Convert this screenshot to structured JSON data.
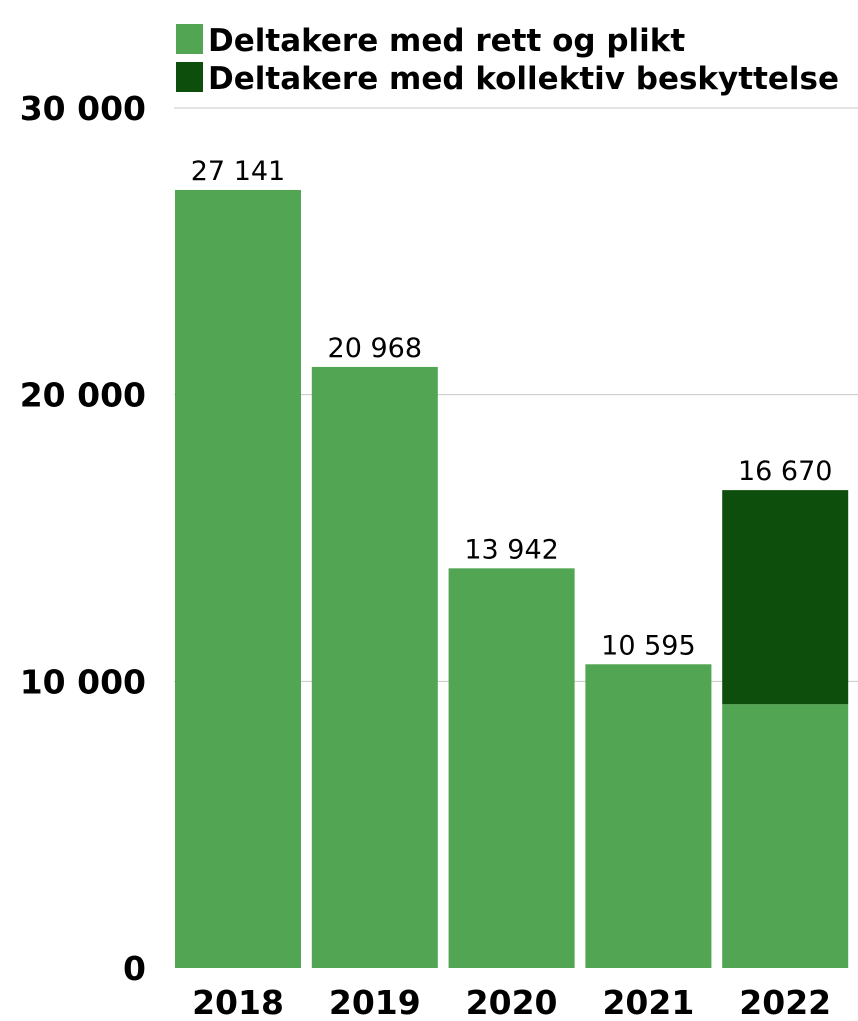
{
  "chart_data": {
    "type": "bar",
    "stacked": true,
    "categories": [
      "2018",
      "2019",
      "2020",
      "2021",
      "2022"
    ],
    "series": [
      {
        "name": "Deltakere med rett og plikt",
        "color": "#52a552",
        "values": [
          27141,
          20968,
          13942,
          10595,
          9200
        ]
      },
      {
        "name": "Deltakere med kollektiv beskyttelse",
        "color": "#0d4e0d",
        "values": [
          0,
          0,
          0,
          0,
          7470
        ]
      }
    ],
    "total_labels": [
      "27 141",
      "20 968",
      "13 942",
      "10 595",
      "16 670"
    ],
    "ytick_values": [
      0,
      10000,
      20000,
      30000
    ],
    "ytick_labels": [
      "0",
      "10 000",
      "20 000",
      "30 000"
    ],
    "ylim": [
      0,
      30000
    ],
    "grid": true,
    "legend_position": "top",
    "gridline_color": "#c8c8c8"
  }
}
